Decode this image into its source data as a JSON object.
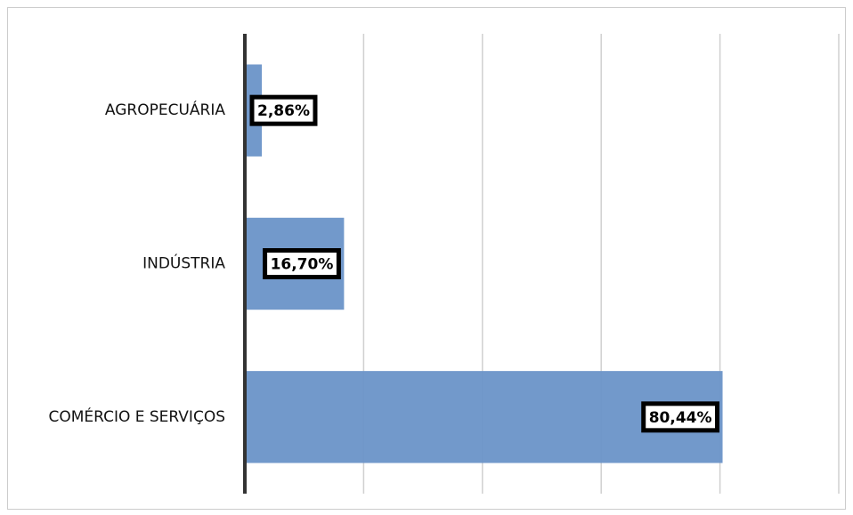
{
  "chart_data": {
    "type": "bar",
    "orientation": "horizontal",
    "categories": [
      "AGROPECUÁRIA",
      "INDÚSTRIA",
      "COMÉRCIO E SERVIÇOS"
    ],
    "values": [
      2.86,
      16.7,
      80.44
    ],
    "value_labels": [
      "2,86%",
      "16,70%",
      "80,44%"
    ],
    "color": "#6a94c8",
    "xlim": [
      0,
      100
    ],
    "xticks": [
      0,
      20,
      40,
      60,
      80,
      100
    ],
    "grid": true
  }
}
